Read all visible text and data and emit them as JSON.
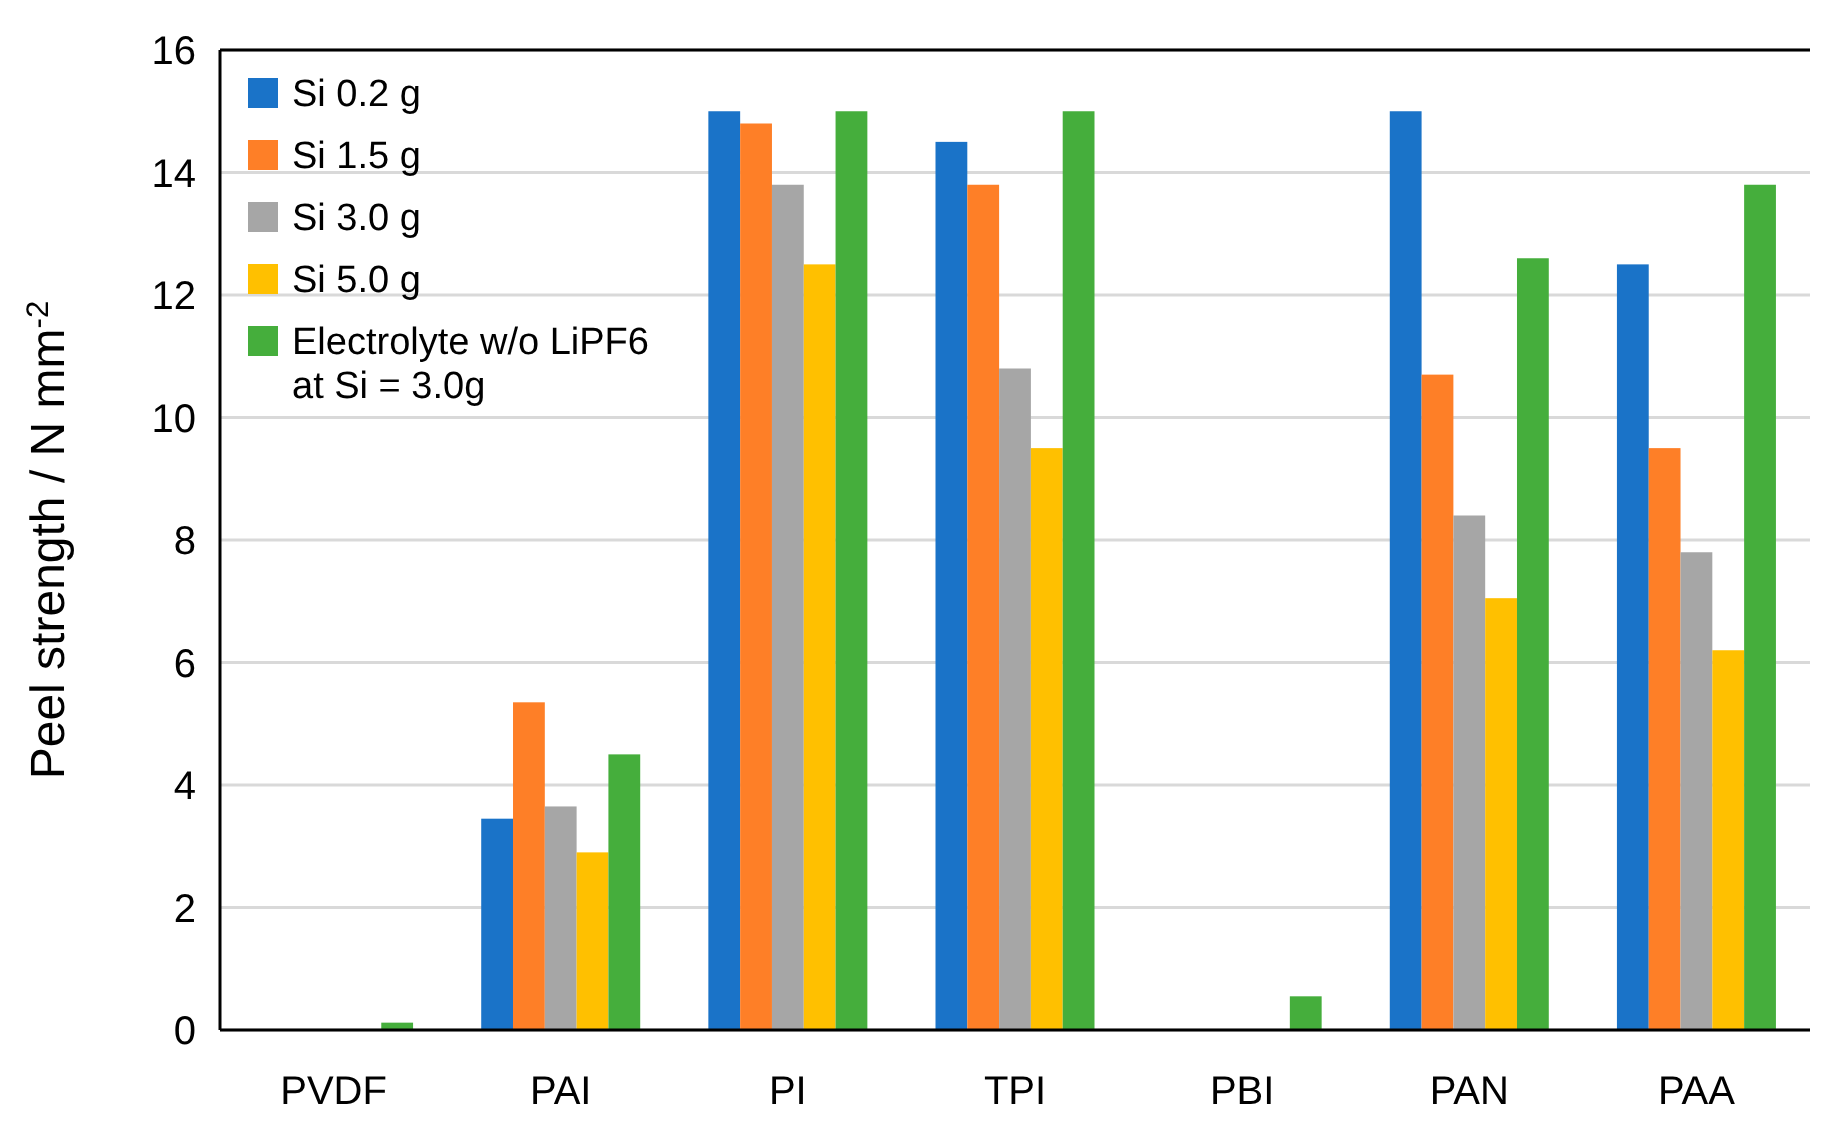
{
  "chart_data": {
    "type": "bar",
    "ylabel": "Peel strength / N mm$^{-2}$",
    "categories": [
      "PVDF",
      "PAI",
      "PI",
      "TPI",
      "PBI",
      "PAN",
      "PAA"
    ],
    "series": [
      {
        "name": "Si 0.2 g",
        "color": "#1a73c8",
        "values": [
          0,
          3.45,
          15,
          14.5,
          0,
          15,
          12.5
        ]
      },
      {
        "name": "Si 1.5 g",
        "color": "#fe7f27",
        "values": [
          0,
          5.35,
          14.8,
          13.8,
          0,
          10.7,
          9.5
        ]
      },
      {
        "name": "Si 3.0 g",
        "color": "#a6a6a6",
        "values": [
          0,
          3.65,
          13.8,
          10.8,
          0,
          8.4,
          7.8
        ]
      },
      {
        "name": "Si 5.0 g",
        "color": "#ffc000",
        "values": [
          0,
          2.9,
          12.5,
          9.5,
          0,
          7.05,
          6.2
        ]
      },
      {
        "name": "Electrolyte w/o LiPF6 at Si = 3.0g",
        "color": "#45ae3c",
        "values": [
          0.12,
          4.5,
          15,
          15,
          0.55,
          12.6,
          13.8
        ]
      }
    ],
    "ylim": [
      0,
      16
    ],
    "yticks": [
      0,
      2,
      4,
      6,
      8,
      10,
      12,
      14,
      16
    ],
    "grid": "y",
    "legend": "top left"
  }
}
